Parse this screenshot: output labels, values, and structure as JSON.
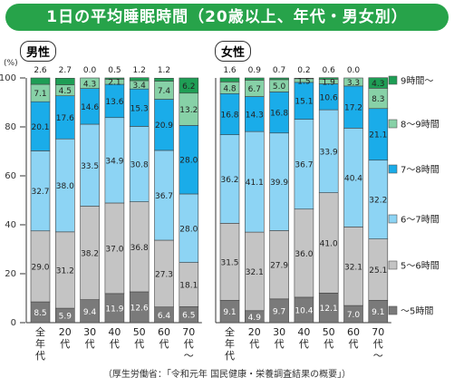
{
  "title": "1日の平均睡眠時間（20歳以上、年代・男女別）",
  "source": "（厚生労働省：「令和元年 国民健康・栄養調査結果の概要」）",
  "chart_data": {
    "type": "bar",
    "stacked": true,
    "ylabel": "(%)",
    "ylim": [
      0,
      100
    ],
    "yticks": [
      "0",
      "20",
      "40",
      "60",
      "80",
      "100"
    ],
    "categories": [
      "全年代",
      "20代",
      "30代",
      "40代",
      "50代",
      "60代",
      "70代〜"
    ],
    "legend_position": "right",
    "colors": [
      "#7a7a7a",
      "#c4c4c4",
      "#8dd4f4",
      "#1aace9",
      "#87d1a7",
      "#1e9e55"
    ],
    "series_names": [
      "〜5時間",
      "5〜6時間",
      "6〜7時間",
      "7〜8時間",
      "8〜9時間",
      "9時間〜"
    ],
    "groups": [
      {
        "label": "男性",
        "values": [
          [
            "8.5",
            "29.0",
            "32.7",
            "20.1",
            "7.1",
            "2.6"
          ],
          [
            "5.9",
            "31.2",
            "38.0",
            "17.6",
            "4.5",
            "2.7"
          ],
          [
            "9.4",
            "38.2",
            "33.5",
            "14.6",
            "4.3",
            "0.0"
          ],
          [
            "11.9",
            "37.0",
            "34.9",
            "13.6",
            "2.1",
            "0.5"
          ],
          [
            "12.6",
            "36.8",
            "30.8",
            "15.3",
            "3.4",
            "1.2"
          ],
          [
            "6.4",
            "27.3",
            "36.7",
            "20.9",
            "7.4",
            "1.2"
          ],
          [
            "6.5",
            "18.1",
            "28.0",
            "28.0",
            "13.2",
            "6.2"
          ]
        ]
      },
      {
        "label": "女性",
        "values": [
          [
            "9.1",
            "31.5",
            "36.2",
            "16.8",
            "4.8",
            "1.6"
          ],
          [
            "4.9",
            "32.1",
            "41.1",
            "14.3",
            "6.7",
            "0.9"
          ],
          [
            "9.7",
            "27.9",
            "39.9",
            "16.8",
            "5.0",
            "0.7"
          ],
          [
            "10.4",
            "36.0",
            "36.7",
            "15.1",
            "1.5",
            "0.2"
          ],
          [
            "12.1",
            "41.0",
            "33.9",
            "10.6",
            "1.9",
            "0.6"
          ],
          [
            "7.0",
            "32.1",
            "40.4",
            "17.2",
            "3.3",
            "0.0"
          ],
          [
            "9.1",
            "25.1",
            "32.2",
            "21.1",
            "8.3",
            "4.3"
          ]
        ]
      }
    ]
  }
}
